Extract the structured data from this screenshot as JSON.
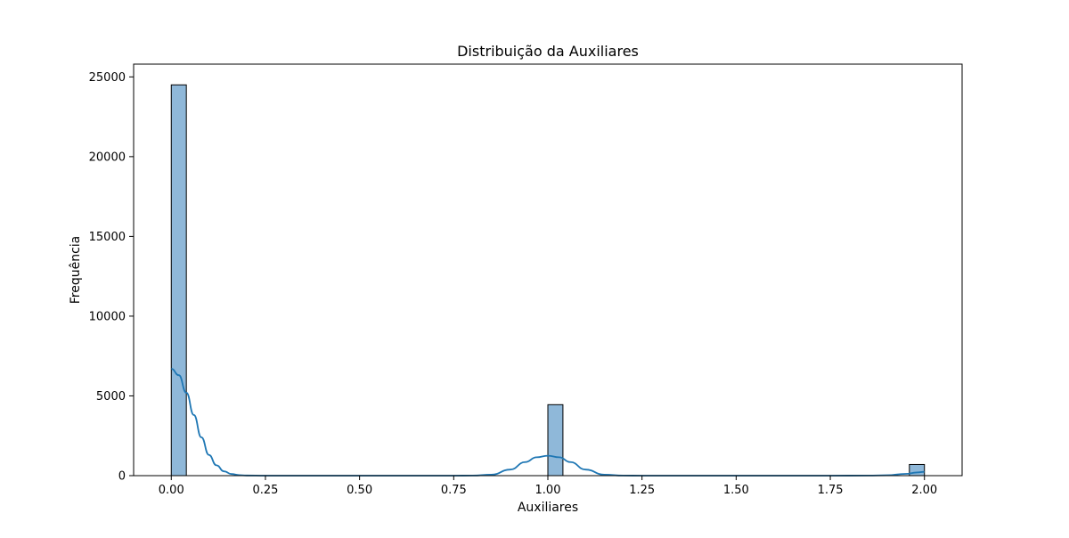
{
  "chart_data": {
    "type": "bar",
    "title": "Distribuição da Auxiliares",
    "xlabel": "Auxiliares",
    "ylabel": "Frequência",
    "xlim": [
      -0.1,
      2.1
    ],
    "ylim": [
      0,
      25800
    ],
    "x_ticks": [
      0.0,
      0.25,
      0.5,
      0.75,
      1.0,
      1.25,
      1.5,
      1.75,
      2.0
    ],
    "x_tick_labels": [
      "0.00",
      "0.25",
      "0.50",
      "0.75",
      "1.00",
      "1.25",
      "1.50",
      "1.75",
      "2.00"
    ],
    "y_ticks": [
      0,
      5000,
      10000,
      15000,
      20000,
      25000
    ],
    "y_tick_labels": [
      "0",
      "5000",
      "10000",
      "15000",
      "20000",
      "25000"
    ],
    "bars": [
      {
        "x_start": 0.0,
        "x_end": 0.04,
        "value": 24500
      },
      {
        "x_start": 1.0,
        "x_end": 1.04,
        "value": 4450
      },
      {
        "x_start": 1.96,
        "x_end": 2.0,
        "value": 700
      }
    ],
    "kde": {
      "x": [
        0.0,
        0.02,
        0.04,
        0.06,
        0.08,
        0.1,
        0.12,
        0.14,
        0.16,
        0.18,
        0.2,
        0.25,
        0.5,
        0.75,
        0.8,
        0.85,
        0.9,
        0.94,
        0.97,
        1.0,
        1.03,
        1.06,
        1.1,
        1.15,
        1.2,
        1.25,
        1.5,
        1.75,
        1.85,
        1.9,
        1.95,
        1.98,
        2.0
      ],
      "y": [
        6700,
        6300,
        5200,
        3800,
        2400,
        1300,
        650,
        270,
        100,
        35,
        10,
        0,
        0,
        0,
        5,
        60,
        380,
        850,
        1150,
        1250,
        1150,
        850,
        380,
        60,
        5,
        0,
        0,
        0,
        5,
        25,
        110,
        200,
        240
      ]
    },
    "colors": {
      "bar_fill": "#8fb8d9",
      "bar_edge": "#000000",
      "kde_line": "#1f77b4"
    },
    "grid": false,
    "legend": "none"
  }
}
